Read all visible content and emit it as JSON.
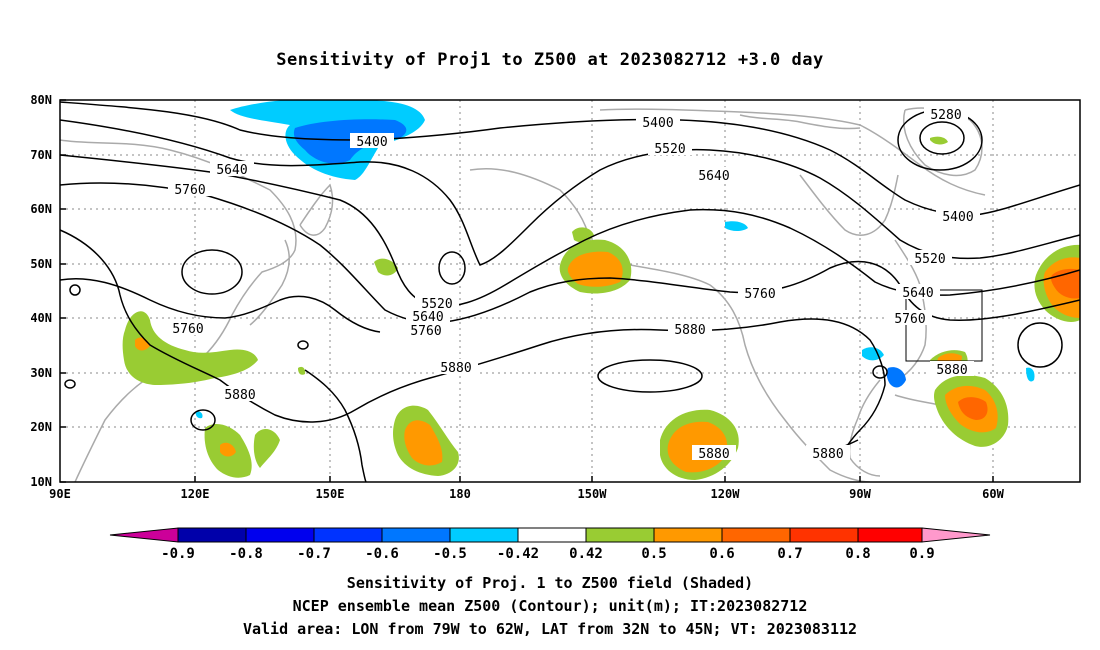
{
  "title": "Sensitivity of Proj1 to Z500 at 2023082712 +3.0 day",
  "lat_labels": [
    "80N",
    "70N",
    "60N",
    "50N",
    "40N",
    "30N",
    "20N",
    "10N"
  ],
  "lon_labels": [
    "90E",
    "120E",
    "150E",
    "180",
    "150W",
    "120W",
    "90W",
    "60W"
  ],
  "contour_labels": [
    "5400",
    "5280",
    "5640",
    "5400",
    "5520",
    "5760",
    "5640",
    "5400",
    "5520",
    "5520",
    "5640",
    "5760",
    "5760",
    "5640",
    "5760",
    "5760",
    "5880",
    "5880",
    "5880",
    "5880",
    "5880",
    "5880"
  ],
  "colorbar": {
    "labels": [
      "-0.9",
      "-0.8",
      "-0.7",
      "-0.6",
      "-0.5",
      "-0.42",
      "0.42",
      "0.5",
      "0.6",
      "0.7",
      "0.8",
      "0.9"
    ],
    "colors": [
      "#cc0099",
      "#0000aa",
      "#0000ee",
      "#0033ff",
      "#0077ff",
      "#00ccff",
      "#ffffff",
      "#99cc33",
      "#ff9900",
      "#ff6600",
      "#ff3300",
      "#ff0000",
      "#ff99cc"
    ]
  },
  "caption_lines": [
    "Sensitivity of Proj. 1 to Z500 field (Shaded)",
    "NCEP ensemble mean Z500 (Contour); unit(m); IT:2023082712",
    "Valid area: LON from 79W to 62W, LAT from 32N to 45N; VT: 2023083112"
  ],
  "colors": {
    "contour": "#000000",
    "coastline": "#aaaaaa",
    "grid": "#888888",
    "positive_low": "#99cc33",
    "positive_mid": "#ff9900",
    "positive_high": "#ff6600",
    "negative_low": "#00ccff",
    "negative_mid": "#0077ff"
  }
}
